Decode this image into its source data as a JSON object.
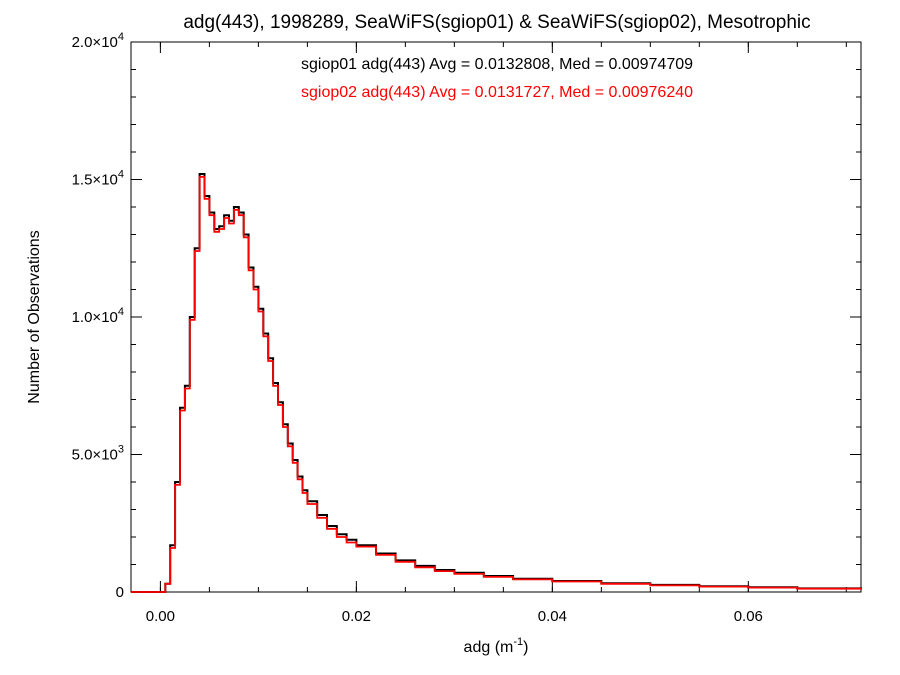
{
  "chart_data": {
    "type": "line",
    "step": true,
    "title": "adg(443), 1998289, SeaWiFS(sgiop01) & SeaWiFS(sgiop02), Mesotrophic",
    "xlabel_base": "adg (m",
    "xlabel_sup": "-1",
    "xlabel_end": ")",
    "ylabel": "Number of Observations",
    "xlim": [
      -0.003,
      0.0715
    ],
    "ylim": [
      0,
      20000
    ],
    "grid": false,
    "x_ticks": [
      {
        "v": 0.0,
        "label": "0.00"
      },
      {
        "v": 0.02,
        "label": "0.02"
      },
      {
        "v": 0.04,
        "label": "0.04"
      },
      {
        "v": 0.06,
        "label": "0.06"
      }
    ],
    "x_minor_step": 0.005,
    "y_ticks": [
      {
        "v": 0,
        "base": "0",
        "exp": ""
      },
      {
        "v": 5000,
        "base": "5.0×10",
        "exp": "3"
      },
      {
        "v": 10000,
        "base": "1.0×10",
        "exp": "4"
      },
      {
        "v": 15000,
        "base": "1.5×10",
        "exp": "4"
      },
      {
        "v": 20000,
        "base": "2.0×10",
        "exp": "4"
      }
    ],
    "y_minor_step": 1000,
    "annotations": [
      {
        "text": "sgiop01 adg(443) Avg = 0.0132808, Med = 0.00974709",
        "color": "#000000"
      },
      {
        "text": "sgiop02 adg(443) Avg = 0.0131727, Med = 0.00976240",
        "color": "#ff0000"
      }
    ],
    "series": [
      {
        "color": "#000000",
        "x": [
          -0.003,
          0.0005,
          0.001,
          0.0015,
          0.002,
          0.0025,
          0.003,
          0.0035,
          0.004,
          0.0045,
          0.005,
          0.0055,
          0.006,
          0.0065,
          0.007,
          0.0075,
          0.008,
          0.0085,
          0.009,
          0.0095,
          0.01,
          0.0105,
          0.011,
          0.0115,
          0.012,
          0.0125,
          0.013,
          0.0135,
          0.014,
          0.0145,
          0.015,
          0.016,
          0.017,
          0.018,
          0.019,
          0.02,
          0.022,
          0.024,
          0.026,
          0.028,
          0.03,
          0.033,
          0.036,
          0.04,
          0.045,
          0.05,
          0.055,
          0.06,
          0.065,
          0.0715
        ],
        "y": [
          0,
          300,
          1700,
          4000,
          6700,
          7500,
          10000,
          12500,
          15200,
          14400,
          13800,
          13200,
          13300,
          13700,
          13500,
          14000,
          13800,
          13000,
          11800,
          11100,
          10300,
          9400,
          8500,
          7600,
          6900,
          6100,
          5400,
          4800,
          4200,
          3700,
          3300,
          2800,
          2400,
          2100,
          1900,
          1700,
          1400,
          1150,
          950,
          800,
          700,
          580,
          480,
          400,
          320,
          260,
          210,
          170,
          130,
          90
        ]
      },
      {
        "color": "#ff0000",
        "x": [
          -0.003,
          0.0005,
          0.001,
          0.0015,
          0.002,
          0.0025,
          0.003,
          0.0035,
          0.004,
          0.0045,
          0.005,
          0.0055,
          0.006,
          0.0065,
          0.007,
          0.0075,
          0.008,
          0.0085,
          0.009,
          0.0095,
          0.01,
          0.0105,
          0.011,
          0.0115,
          0.012,
          0.0125,
          0.013,
          0.0135,
          0.014,
          0.0145,
          0.015,
          0.016,
          0.017,
          0.018,
          0.019,
          0.02,
          0.022,
          0.024,
          0.026,
          0.028,
          0.03,
          0.033,
          0.036,
          0.04,
          0.045,
          0.05,
          0.055,
          0.06,
          0.065,
          0.0715
        ],
        "y": [
          0,
          300,
          1600,
          3900,
          6600,
          7400,
          9900,
          12400,
          15100,
          14300,
          13700,
          13100,
          13200,
          13600,
          13400,
          13900,
          13700,
          12900,
          11700,
          11000,
          10200,
          9300,
          8400,
          7500,
          6800,
          6000,
          5300,
          4700,
          4100,
          3600,
          3200,
          2700,
          2300,
          2000,
          1800,
          1650,
          1350,
          1100,
          900,
          760,
          660,
          550,
          460,
          380,
          300,
          240,
          195,
          160,
          120,
          80
        ]
      }
    ]
  }
}
